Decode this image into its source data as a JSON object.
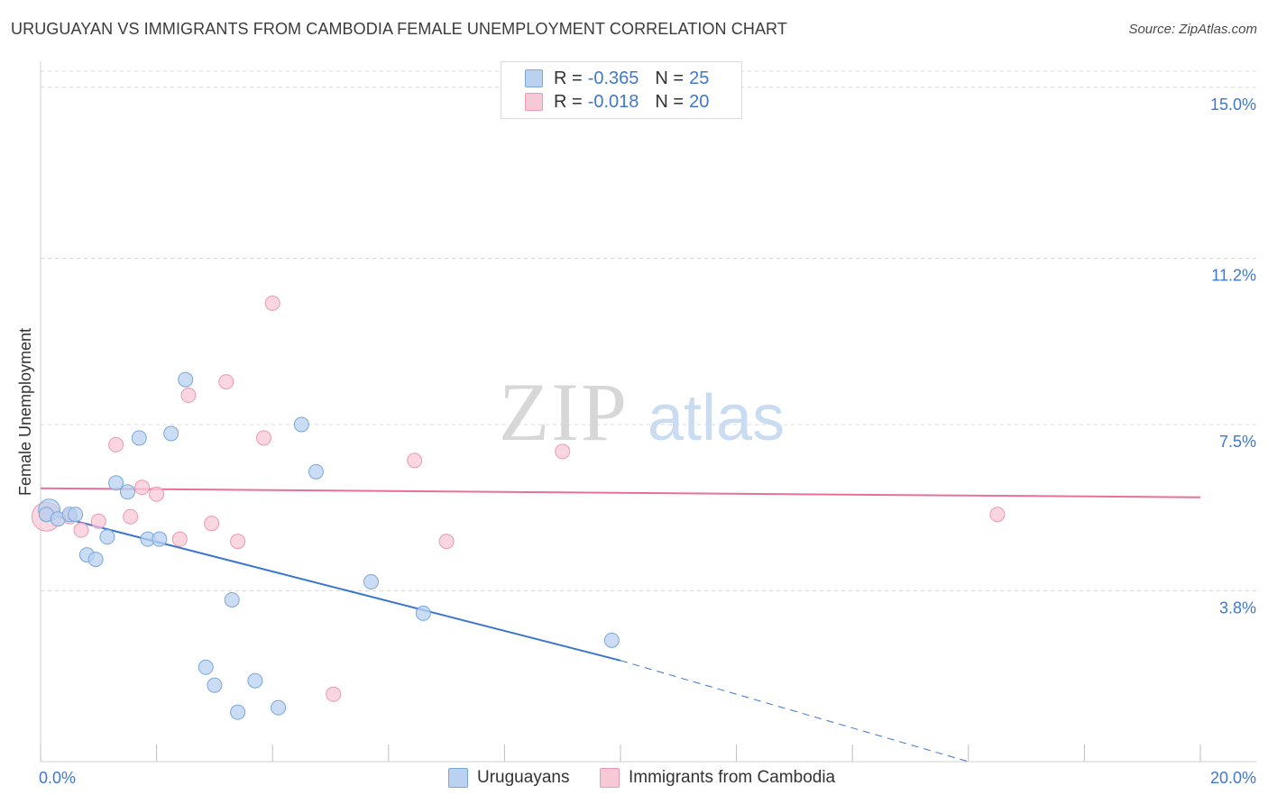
{
  "title": "URUGUAYAN VS IMMIGRANTS FROM CAMBODIA FEMALE UNEMPLOYMENT CORRELATION CHART",
  "source": "Source: ZipAtlas.com",
  "watermark": {
    "zip": "ZIP",
    "atlas": "atlas"
  },
  "legend": {
    "rows": [
      {
        "r_label": "R =",
        "r_value": "-0.365",
        "n_label": "N =",
        "n_value": "25"
      },
      {
        "r_label": "R =",
        "r_value": "-0.018",
        "n_label": "N =",
        "n_value": "20"
      }
    ]
  },
  "colors": {
    "blue_fill": "#b8d2f0",
    "blue_stroke": "#7aa6dc",
    "blue_line": "#3a76d0",
    "pink_fill": "#f7c8d6",
    "pink_stroke": "#ea9ab3",
    "pink_line": "#e8709a",
    "axis_text": "#3f78cc",
    "grid": "#d8d8d8"
  },
  "chart_data": {
    "type": "scatter",
    "title": "URUGUAYAN VS IMMIGRANTS FROM CAMBODIA FEMALE UNEMPLOYMENT CORRELATION CHART",
    "xlabel": "",
    "ylabel": "Female Unemployment",
    "xlim": [
      0,
      20
    ],
    "ylim": [
      0,
      15.5
    ],
    "x_tick_labels": {
      "min": "0.0%",
      "max": "20.0%"
    },
    "y_ticks": [
      3.8,
      7.5,
      11.2,
      15.0
    ],
    "y_tick_labels": [
      "3.8%",
      "7.5%",
      "11.2%",
      "15.0%"
    ],
    "series": [
      {
        "name": "Uruguayans",
        "color": "#b8d2f0",
        "r": -0.365,
        "n": 25,
        "points": [
          [
            0.1,
            5.5
          ],
          [
            0.3,
            5.4
          ],
          [
            0.5,
            5.5
          ],
          [
            0.6,
            5.5
          ],
          [
            0.8,
            4.6
          ],
          [
            0.95,
            4.5
          ],
          [
            1.15,
            5.0
          ],
          [
            1.3,
            6.2
          ],
          [
            1.5,
            6.0
          ],
          [
            1.7,
            7.2
          ],
          [
            1.85,
            4.95
          ],
          [
            2.05,
            4.95
          ],
          [
            2.25,
            7.3
          ],
          [
            2.5,
            8.5
          ],
          [
            2.85,
            2.1
          ],
          [
            3.0,
            1.7
          ],
          [
            3.3,
            3.6
          ],
          [
            3.4,
            1.1
          ],
          [
            3.7,
            1.8
          ],
          [
            4.1,
            1.2
          ],
          [
            4.5,
            7.5
          ],
          [
            4.75,
            6.45
          ],
          [
            5.7,
            4.0
          ],
          [
            6.6,
            3.3
          ],
          [
            9.85,
            2.7
          ]
        ],
        "trend": {
          "x0": 0,
          "y0": 5.55,
          "x1": 10.0,
          "y1": 2.25,
          "dash_x1": 16.0,
          "dash_y1": 0.0
        }
      },
      {
        "name": "Immigrants from Cambodia",
        "color": "#f7c8d6",
        "r": -0.018,
        "n": 20,
        "points": [
          [
            0.1,
            5.5
          ],
          [
            0.5,
            5.45
          ],
          [
            0.7,
            5.15
          ],
          [
            1.0,
            5.35
          ],
          [
            1.3,
            7.05
          ],
          [
            1.55,
            5.45
          ],
          [
            1.75,
            6.1
          ],
          [
            2.0,
            5.95
          ],
          [
            2.4,
            4.95
          ],
          [
            2.55,
            8.15
          ],
          [
            2.95,
            5.3
          ],
          [
            3.2,
            8.45
          ],
          [
            3.4,
            4.9
          ],
          [
            3.85,
            7.2
          ],
          [
            4.0,
            10.2
          ],
          [
            5.05,
            1.5
          ],
          [
            6.45,
            6.7
          ],
          [
            7.0,
            4.9
          ],
          [
            9.0,
            6.9
          ],
          [
            16.5,
            5.5
          ]
        ],
        "trend": {
          "x0": 0,
          "y0": 6.08,
          "x1": 20.0,
          "y1": 5.88
        }
      }
    ]
  },
  "bottom_legend": [
    {
      "label": "Uruguayans"
    },
    {
      "label": "Immigrants from Cambodia"
    }
  ]
}
